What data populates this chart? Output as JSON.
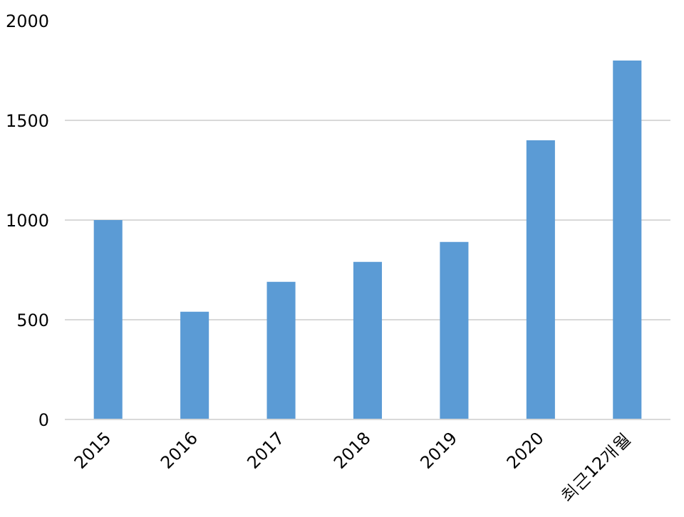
{
  "chart_data": {
    "type": "bar",
    "categories": [
      "2015",
      "2016",
      "2017",
      "2018",
      "2019",
      "2020",
      "최근12개월"
    ],
    "values": [
      1000,
      540,
      690,
      790,
      890,
      1400,
      1800
    ],
    "color": "#5b9bd5",
    "ylim": [
      0,
      2000
    ],
    "yticks": [
      0,
      500,
      1000,
      1500,
      2000
    ],
    "grid": "y"
  }
}
